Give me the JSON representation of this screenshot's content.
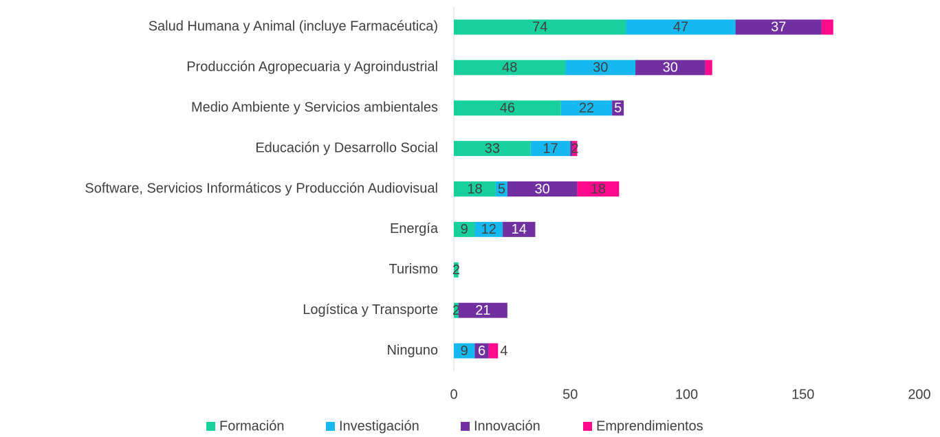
{
  "chart_data": {
    "type": "stacked_barh",
    "categories": [
      "Salud Humana y Animal (incluye Farmacéutica)",
      "Producción Agropecuaria y Agroindustrial",
      "Medio Ambiente y Servicios ambientales",
      "Educación y Desarrollo Social",
      "Software, Servicios Informáticos y Producción Audiovisual",
      "Energía",
      "Turismo",
      "Logística y Transporte",
      "Ninguno"
    ],
    "series": [
      {
        "name": "Formación",
        "color": "#19d09c",
        "values": [
          74,
          48,
          46,
          33,
          18,
          9,
          2,
          2,
          null
        ],
        "value_labels": [
          "74",
          "48",
          "46",
          "33",
          "18",
          "9",
          "2",
          "2",
          null
        ]
      },
      {
        "name": "Investigación",
        "color": "#17b8f0",
        "values": [
          47,
          30,
          22,
          17,
          5,
          12,
          null,
          null,
          9
        ],
        "value_labels": [
          "47",
          "30",
          "22",
          "17",
          "5",
          "12",
          null,
          null,
          "9"
        ]
      },
      {
        "name": "Innovación",
        "color": "#7030a0",
        "values": [
          37,
          30,
          5,
          1,
          30,
          14,
          null,
          21,
          6
        ],
        "value_labels": [
          "37",
          "30",
          "5",
          null,
          "30",
          "14",
          null,
          "21",
          "6"
        ]
      },
      {
        "name": "Emprendimientos",
        "color": "#ff0a8c",
        "values": [
          5,
          3,
          null,
          2,
          18,
          null,
          null,
          null,
          4
        ],
        "value_labels": [
          null,
          null,
          null,
          "2",
          "18",
          null,
          null,
          null,
          "4"
        ]
      }
    ],
    "xlim": [
      0,
      200
    ],
    "xticks": [
      0,
      50,
      100,
      150,
      200
    ],
    "legend": "bottom"
  }
}
